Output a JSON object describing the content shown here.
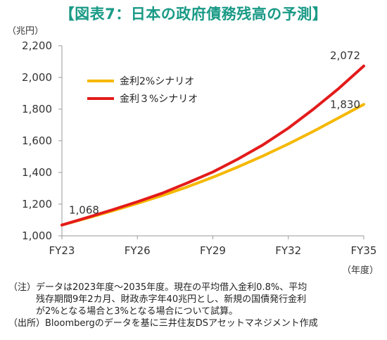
{
  "title": "【図表7：日本の政府債務残高の予測】",
  "y_unit": "（兆円）",
  "x_unit": "（年度）",
  "chart_data": {
    "type": "line",
    "title": "【図表7：日本の政府債務残高の予測】",
    "xlabel": "（年度）",
    "ylabel": "（兆円）",
    "x": [
      "FY23",
      "FY24",
      "FY25",
      "FY26",
      "FY27",
      "FY28",
      "FY29",
      "FY30",
      "FY31",
      "FY32",
      "FY33",
      "FY34",
      "FY35"
    ],
    "x_ticks": [
      "FY23",
      "FY26",
      "FY29",
      "FY32",
      "FY35"
    ],
    "ylim": [
      1000,
      2200
    ],
    "y_ticks": [
      "1,000",
      "1,200",
      "1,400",
      "1,600",
      "1,800",
      "2,000",
      "2,200"
    ],
    "grid": false,
    "legend_position": "top-left",
    "series": [
      {
        "name": "金利2%シナリオ",
        "color": "#f5b800",
        "values": [
          1068,
          1112,
          1157,
          1205,
          1255,
          1310,
          1370,
          1435,
          1505,
          1580,
          1660,
          1745,
          1830
        ]
      },
      {
        "name": "金利３%シナリオ",
        "color": "#e31b1b",
        "values": [
          1068,
          1115,
          1164,
          1215,
          1270,
          1335,
          1403,
          1485,
          1575,
          1680,
          1800,
          1930,
          2072
        ]
      }
    ],
    "annotations": [
      "1,068",
      "2,072",
      "1,830"
    ]
  },
  "notes": [
    "（注）データは2023年度～2035年度。現在の平均借入金利0.8%、平均",
    "　　　残存期間9年2カ月、財政赤字年40兆円とし、新規の国債発行金利",
    "　　　が2%となる場合と3%となる場合について試算。",
    "（出所）Bloombergのデータを基に三井住友DSアセットマネジメント作成"
  ]
}
